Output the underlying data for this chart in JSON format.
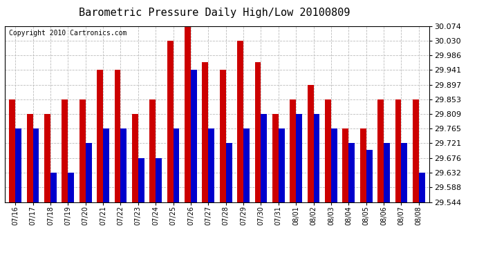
{
  "title": "Barometric Pressure Daily High/Low 20100809",
  "copyright": "Copyright 2010 Cartronics.com",
  "dates": [
    "07/16",
    "07/17",
    "07/18",
    "07/19",
    "07/20",
    "07/21",
    "07/22",
    "07/23",
    "07/24",
    "07/25",
    "07/26",
    "07/27",
    "07/28",
    "07/29",
    "07/30",
    "07/31",
    "08/01",
    "08/02",
    "08/03",
    "08/04",
    "08/05",
    "08/06",
    "08/07",
    "08/08"
  ],
  "highs": [
    29.853,
    29.809,
    29.809,
    29.853,
    29.853,
    29.941,
    29.941,
    29.809,
    29.853,
    30.03,
    30.074,
    29.965,
    29.941,
    30.03,
    29.965,
    29.809,
    29.853,
    29.897,
    29.853,
    29.765,
    29.765,
    29.853,
    29.853,
    29.853
  ],
  "lows": [
    29.765,
    29.765,
    29.632,
    29.632,
    29.721,
    29.765,
    29.765,
    29.676,
    29.676,
    29.765,
    29.941,
    29.765,
    29.721,
    29.765,
    29.809,
    29.765,
    29.809,
    29.809,
    29.765,
    29.721,
    29.7,
    29.721,
    29.721,
    29.632
  ],
  "bar_color_high": "#cc0000",
  "bar_color_low": "#0000cc",
  "ylim_min": 29.544,
  "ylim_max": 30.074,
  "yticks": [
    29.544,
    29.588,
    29.632,
    29.676,
    29.721,
    29.765,
    29.809,
    29.853,
    29.897,
    29.941,
    29.986,
    30.03,
    30.074
  ],
  "background_color": "#ffffff",
  "grid_color": "#bbbbbb",
  "title_fontsize": 11,
  "copyright_fontsize": 7,
  "tick_fontsize": 8,
  "xtick_fontsize": 7
}
